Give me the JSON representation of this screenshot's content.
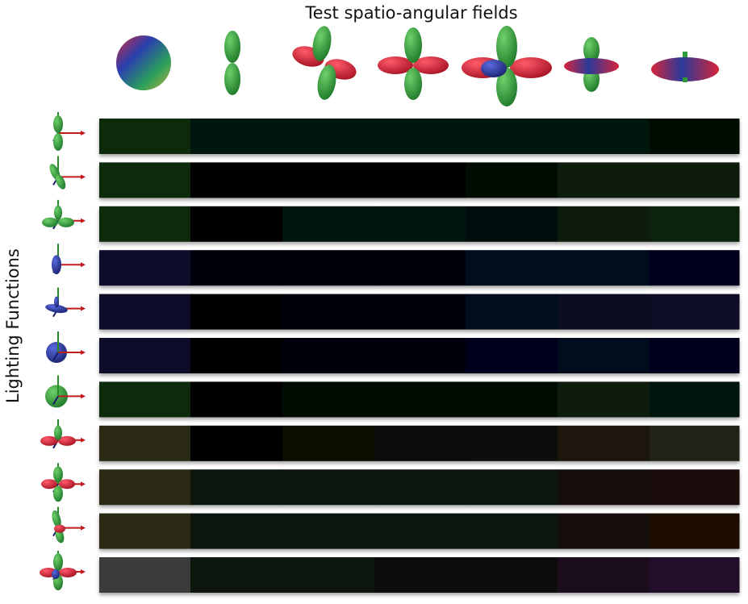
{
  "title": "Test spatio-angular fields",
  "ylabel": "Lighting Functions",
  "fields": [
    {
      "icon": "sphere-rgb-icon",
      "colors": [
        "#2a3fb0",
        "#2ba05a",
        "#d02a3a"
      ]
    },
    {
      "icon": "dipole-vertical-icon",
      "colors": [
        "#2f9a3a"
      ]
    },
    {
      "icon": "quadrupole-tilted-icon",
      "colors": [
        "#2f9a3a",
        "#d6243a"
      ]
    },
    {
      "icon": "quadrupole-icon",
      "colors": [
        "#2f9a3a",
        "#d6243a"
      ]
    },
    {
      "icon": "quadrupole-blue-core-icon",
      "colors": [
        "#2f9a3a",
        "#d6243a",
        "#2a3a9a"
      ]
    },
    {
      "icon": "lobe-ring-icon",
      "colors": [
        "#2f9a3a",
        "#d6243a",
        "#2a3a9a"
      ]
    },
    {
      "icon": "torus-icon",
      "colors": [
        "#2a3a9a",
        "#d6243a",
        "#2f9a3a"
      ]
    }
  ],
  "lights": [
    {
      "icon": "light-dipole-z-icon"
    },
    {
      "icon": "light-dipole-tilted-icon"
    },
    {
      "icon": "light-lobes-icon"
    },
    {
      "icon": "light-blue-dipole-icon"
    },
    {
      "icon": "light-blue-disk-icon"
    },
    {
      "icon": "light-blue-sphere-icon"
    },
    {
      "icon": "light-green-sphere-icon"
    },
    {
      "icon": "light-red-green-lobes-icon"
    },
    {
      "icon": "light-clover-icon"
    },
    {
      "icon": "light-rg-tilted-icon"
    },
    {
      "icon": "light-rgb-clover-icon"
    }
  ],
  "cells": [
    [
      "#0b2a10",
      "#051207",
      "#061508",
      "#061408",
      "#051207",
      "#061509",
      "#030904"
    ],
    [
      "#0b2a10",
      "#020402",
      "#020402",
      "#020402",
      "#041006",
      "#071a0a",
      "#081d0b"
    ],
    [
      "#0b2a10",
      "#020402",
      "#051208",
      "#061408",
      "#051107",
      "#081c0b",
      "#0a220e"
    ],
    [
      "#0b0f2a",
      "#03040a",
      "#03040a",
      "#03040a",
      "#06081a",
      "#05071a",
      "#04061a"
    ],
    [
      "#0b0f2a",
      "#020306",
      "#030409",
      "#03040b",
      "#06081a",
      "#080b22",
      "#0a0d28"
    ],
    [
      "#0b0f2a",
      "#020306",
      "#030409",
      "#03040b",
      "#04061a",
      "#05071a",
      "#04061a"
    ],
    [
      "#0b2a10",
      "#020402",
      "#041006",
      "#041006",
      "#041006",
      "#071a0a",
      "#061508"
    ],
    [
      "#2a2a12",
      "#040403",
      "#090706",
      "#0c0807",
      "#0f0f0b",
      "#1a190e",
      "#202014"
    ],
    [
      "#2a2a12",
      "#0a120a",
      "#0c160c",
      "#0c140c",
      "#0e120c",
      "#170f0a",
      "#1c0a08"
    ],
    [
      "#2a2a12",
      "#0a120a",
      "#0b150b",
      "#0b140b",
      "#0d120b",
      "#170e09",
      "#1c0906"
    ],
    [
      "#3a3a3a",
      "#081208",
      "#081208",
      "#080f08",
      "#101010",
      "#1a0f1e",
      "#240f2a"
    ]
  ]
}
